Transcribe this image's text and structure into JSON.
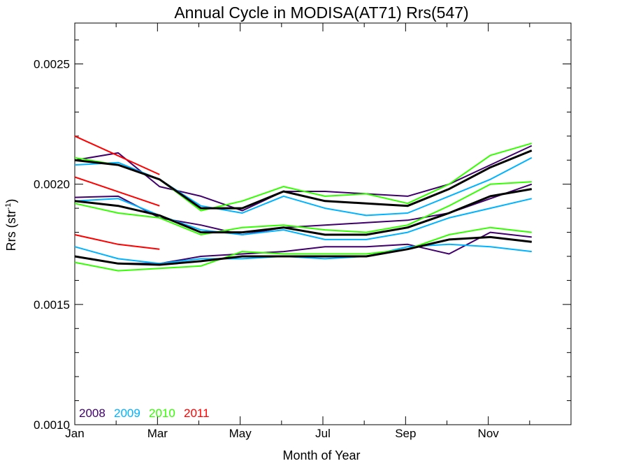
{
  "chart_data": {
    "type": "line",
    "title": "Annual Cycle in MODISA(AT71) Rrs(547)",
    "xlabel": "Month of Year",
    "ylabel_main": "Rrs (str",
    "ylabel_sup": "-1",
    "ylabel_end": ")",
    "xlim": [
      1,
      13
    ],
    "ylim": [
      0.001,
      0.00267
    ],
    "xticks": [
      {
        "value": 1,
        "label": "Jan"
      },
      {
        "value": 3,
        "label": "Mar"
      },
      {
        "value": 5,
        "label": "May"
      },
      {
        "value": 7,
        "label": "Jul"
      },
      {
        "value": 9,
        "label": "Sep"
      },
      {
        "value": 11,
        "label": "Nov"
      }
    ],
    "yticks": [
      {
        "value": 0.001,
        "label": "0.0010"
      },
      {
        "value": 0.0015,
        "label": "0.0015"
      },
      {
        "value": 0.002,
        "label": "0.0020"
      },
      {
        "value": 0.0025,
        "label": "0.0025"
      }
    ],
    "minor_x": [
      2,
      4,
      6,
      8,
      10,
      12
    ],
    "minor_y": [
      0.0011,
      0.0012,
      0.0013,
      0.0014,
      0.0016,
      0.0017,
      0.0018,
      0.0019,
      0.0021,
      0.0022,
      0.0023,
      0.0024,
      0.0026
    ],
    "legend_placement": "bottom-left",
    "legend": [
      {
        "label": "2008",
        "color": "#40006b"
      },
      {
        "label": "2009",
        "color": "#00b3ff"
      },
      {
        "label": "2010",
        "color": "#33ff00"
      },
      {
        "label": "2011",
        "color": "#ff0000"
      }
    ],
    "series": [
      {
        "group": "2008",
        "color": "#40006b",
        "width": 2,
        "x": [
          1,
          2.05,
          3.05,
          4.05,
          5.05,
          6.05,
          7.05,
          8.05,
          9.05,
          10.05,
          11.05,
          12.05
        ],
        "y": [
          0.0021,
          0.00213,
          0.00199,
          0.00195,
          0.00189,
          0.00197,
          0.00197,
          0.00196,
          0.00195,
          0.002,
          0.00208,
          0.00216
        ]
      },
      {
        "group": "2008",
        "color": "#40006b",
        "width": 2,
        "x": [
          1,
          2.05,
          3.05,
          4.05,
          5.05,
          6.05,
          7.05,
          8.05,
          9.05,
          10.05,
          11.05,
          12.05
        ],
        "y": [
          0.001945,
          0.00195,
          0.00186,
          0.00183,
          0.00179,
          0.00182,
          0.00183,
          0.00184,
          0.00185,
          0.00188,
          0.00194,
          0.002
        ]
      },
      {
        "group": "2008",
        "color": "#40006b",
        "width": 2,
        "x": [
          1,
          2.05,
          3.05,
          4.05,
          5.05,
          6.05,
          7.05,
          8.05,
          9.05,
          10.05,
          11.05,
          12.05
        ],
        "y": [
          0.0017,
          0.00167,
          0.00167,
          0.0017,
          0.00171,
          0.00172,
          0.00174,
          0.00174,
          0.00175,
          0.00171,
          0.0018,
          0.00178
        ]
      },
      {
        "group": "2009",
        "color": "#00b3ff",
        "width": 2,
        "x": [
          1,
          2.05,
          3.05,
          4.05,
          5.05,
          6.05,
          7.05,
          8.05,
          9.05,
          10.05,
          11.05,
          12.05
        ],
        "y": [
          0.00208,
          0.00209,
          0.00202,
          0.00191,
          0.00188,
          0.00195,
          0.0019,
          0.00187,
          0.00188,
          0.00195,
          0.00202,
          0.00211
        ]
      },
      {
        "group": "2009",
        "color": "#00b3ff",
        "width": 2,
        "x": [
          1,
          2.05,
          3.05,
          4.05,
          5.05,
          6.05,
          7.05,
          8.05,
          9.05,
          10.05,
          11.05,
          12.05
        ],
        "y": [
          0.00193,
          0.00194,
          0.00187,
          0.00181,
          0.00179,
          0.00181,
          0.00177,
          0.00177,
          0.0018,
          0.00186,
          0.0019,
          0.00194
        ]
      },
      {
        "group": "2009",
        "color": "#00b3ff",
        "width": 2,
        "x": [
          1,
          2.05,
          3.05,
          4.05,
          5.05,
          6.05,
          7.05,
          8.05,
          9.05,
          10.05,
          11.05,
          12.05
        ],
        "y": [
          0.00174,
          0.00169,
          0.00167,
          0.00169,
          0.00169,
          0.0017,
          0.00169,
          0.0017,
          0.00174,
          0.00175,
          0.00174,
          0.00172
        ]
      },
      {
        "group": "2010",
        "color": "#33ff00",
        "width": 2,
        "x": [
          1,
          2.05,
          3.05,
          4.05,
          5.05,
          6.05,
          7.05,
          8.05,
          9.05,
          10.05,
          11.05,
          12.05
        ],
        "y": [
          0.00211,
          0.00208,
          0.00202,
          0.00189,
          0.00193,
          0.00199,
          0.00195,
          0.00196,
          0.00192,
          0.002,
          0.00212,
          0.00217
        ]
      },
      {
        "group": "2010",
        "color": "#33ff00",
        "width": 2,
        "x": [
          1,
          2.05,
          3.05,
          4.05,
          5.05,
          6.05,
          7.05,
          8.05,
          9.05,
          10.05,
          11.05,
          12.05
        ],
        "y": [
          0.00192,
          0.00188,
          0.00186,
          0.00179,
          0.00182,
          0.00183,
          0.00181,
          0.0018,
          0.00183,
          0.00191,
          0.002,
          0.00201
        ]
      },
      {
        "group": "2010",
        "color": "#33ff00",
        "width": 2,
        "x": [
          1,
          2.05,
          3.05,
          4.05,
          5.05,
          6.05,
          7.05,
          8.05,
          9.05,
          10.05,
          11.05,
          12.05
        ],
        "y": [
          0.001675,
          0.00164,
          0.00165,
          0.00166,
          0.00172,
          0.00171,
          0.00171,
          0.00171,
          0.00173,
          0.00179,
          0.00182,
          0.0018
        ]
      },
      {
        "group": "2011",
        "color": "#ff0000",
        "width": 2,
        "x": [
          1,
          3.05
        ],
        "y": [
          0.0022,
          0.00204
        ]
      },
      {
        "group": "2011",
        "color": "#ff0000",
        "width": 2,
        "x": [
          1,
          3.05
        ],
        "y": [
          0.00203,
          0.00191
        ]
      },
      {
        "group": "2011",
        "color": "#ff0000",
        "width": 2,
        "x": [
          1,
          2.05,
          3.05
        ],
        "y": [
          0.00179,
          0.00175,
          0.00173
        ]
      },
      {
        "group": "mean",
        "color": "#000000",
        "width": 3,
        "x": [
          1,
          2.05,
          3.05,
          4.05,
          5.05,
          6.05,
          7.05,
          8.05,
          9.05,
          10.05,
          11.05,
          12.05
        ],
        "y": [
          0.0021,
          0.00208,
          0.00202,
          0.0019,
          0.0019,
          0.00197,
          0.00193,
          0.00192,
          0.00191,
          0.00198,
          0.00207,
          0.00214
        ]
      },
      {
        "group": "mean",
        "color": "#000000",
        "width": 3,
        "x": [
          1,
          2.05,
          3.05,
          4.05,
          5.05,
          6.05,
          7.05,
          8.05,
          9.05,
          10.05,
          11.05,
          12.05
        ],
        "y": [
          0.00193,
          0.00191,
          0.00187,
          0.0018,
          0.0018,
          0.00182,
          0.00179,
          0.00179,
          0.00182,
          0.00188,
          0.00195,
          0.00198
        ]
      },
      {
        "group": "mean",
        "color": "#000000",
        "width": 3,
        "x": [
          1,
          2.05,
          3.05,
          4.05,
          5.05,
          6.05,
          7.05,
          8.05,
          9.05,
          10.05,
          11.05,
          12.05
        ],
        "y": [
          0.0017,
          0.00167,
          0.001665,
          0.00168,
          0.0017,
          0.0017,
          0.0017,
          0.0017,
          0.00173,
          0.00177,
          0.00178,
          0.00176
        ]
      }
    ]
  }
}
